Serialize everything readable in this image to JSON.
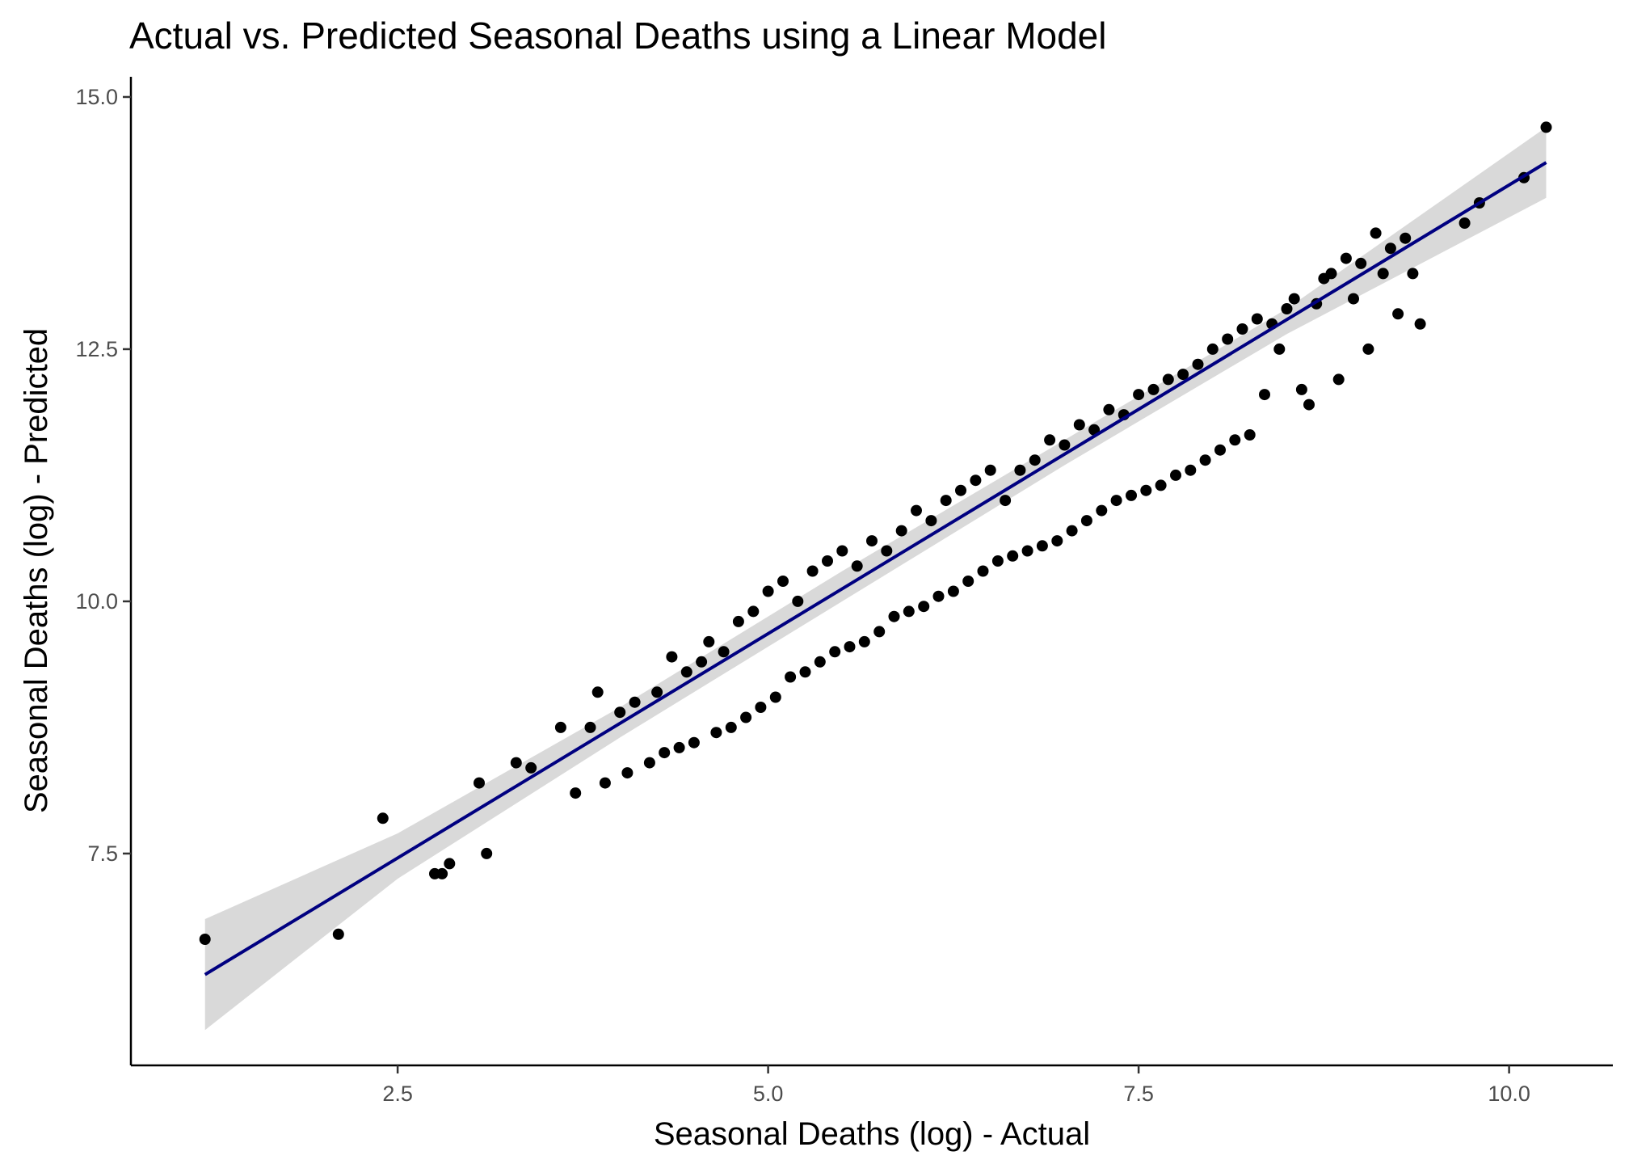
{
  "chart_data": {
    "type": "scatter",
    "title": "Actual vs. Predicted Seasonal Deaths using a Linear Model",
    "xlabel": "Seasonal Deaths (log) - Actual",
    "ylabel": "Seasonal Deaths (log) - Predicted",
    "xlim": [
      0.7,
      10.7
    ],
    "ylim": [
      5.4,
      15.2
    ],
    "x_ticks": [
      2.5,
      5.0,
      7.5,
      10.0
    ],
    "x_tick_labels": [
      "2.5",
      "5.0",
      "7.5",
      "10.0"
    ],
    "y_ticks": [
      7.5,
      10.0,
      12.5,
      15.0
    ],
    "y_tick_labels": [
      "7.5",
      "10.0",
      "12.5",
      "15.0"
    ],
    "grid": false,
    "legend": "none",
    "colors": {
      "points": "#000000",
      "fit_line": "#000080",
      "confidence_band": "#bfbfbf"
    },
    "fit_line": {
      "method": "linear",
      "x": [
        1.2,
        10.25
      ],
      "y": [
        6.3,
        14.35
      ],
      "band": {
        "x": [
          1.2,
          2.5,
          4.0,
          5.5,
          7.0,
          8.5,
          10.25
        ],
        "lower": [
          5.75,
          7.25,
          8.65,
          10.0,
          11.35,
          12.65,
          14.0
        ],
        "upper": [
          6.85,
          7.7,
          8.95,
          10.3,
          11.6,
          12.9,
          14.7
        ]
      }
    },
    "series": [
      {
        "points": [
          [
            1.2,
            6.65
          ],
          [
            2.1,
            6.7
          ],
          [
            2.4,
            7.85
          ],
          [
            2.75,
            7.3
          ],
          [
            2.8,
            7.3
          ],
          [
            2.85,
            7.4
          ],
          [
            3.05,
            8.2
          ],
          [
            3.1,
            7.5
          ],
          [
            3.3,
            8.4
          ],
          [
            3.4,
            8.35
          ],
          [
            3.6,
            8.75
          ],
          [
            3.7,
            8.1
          ],
          [
            3.8,
            8.75
          ],
          [
            3.85,
            9.1
          ],
          [
            3.9,
            8.2
          ],
          [
            4.0,
            8.9
          ],
          [
            4.05,
            8.3
          ],
          [
            4.1,
            9.0
          ],
          [
            4.2,
            8.4
          ],
          [
            4.25,
            9.1
          ],
          [
            4.3,
            8.5
          ],
          [
            4.35,
            9.45
          ],
          [
            4.4,
            8.55
          ],
          [
            4.45,
            9.3
          ],
          [
            4.5,
            8.6
          ],
          [
            4.55,
            9.4
          ],
          [
            4.6,
            9.6
          ],
          [
            4.65,
            8.7
          ],
          [
            4.7,
            9.5
          ],
          [
            4.75,
            8.75
          ],
          [
            4.8,
            9.8
          ],
          [
            4.85,
            8.85
          ],
          [
            4.9,
            9.9
          ],
          [
            4.95,
            8.95
          ],
          [
            5.0,
            10.1
          ],
          [
            5.05,
            9.05
          ],
          [
            5.1,
            10.2
          ],
          [
            5.15,
            9.25
          ],
          [
            5.2,
            10.0
          ],
          [
            5.25,
            9.3
          ],
          [
            5.3,
            10.3
          ],
          [
            5.35,
            9.4
          ],
          [
            5.4,
            10.4
          ],
          [
            5.45,
            9.5
          ],
          [
            5.5,
            10.5
          ],
          [
            5.55,
            9.55
          ],
          [
            5.6,
            10.35
          ],
          [
            5.65,
            9.6
          ],
          [
            5.7,
            10.6
          ],
          [
            5.75,
            9.7
          ],
          [
            5.8,
            10.5
          ],
          [
            5.85,
            9.85
          ],
          [
            5.9,
            10.7
          ],
          [
            5.95,
            9.9
          ],
          [
            6.0,
            10.9
          ],
          [
            6.05,
            9.95
          ],
          [
            6.1,
            10.8
          ],
          [
            6.15,
            10.05
          ],
          [
            6.2,
            11.0
          ],
          [
            6.25,
            10.1
          ],
          [
            6.3,
            11.1
          ],
          [
            6.35,
            10.2
          ],
          [
            6.4,
            11.2
          ],
          [
            6.45,
            10.3
          ],
          [
            6.5,
            11.3
          ],
          [
            6.55,
            10.4
          ],
          [
            6.6,
            11.0
          ],
          [
            6.65,
            10.45
          ],
          [
            6.7,
            11.3
          ],
          [
            6.75,
            10.5
          ],
          [
            6.8,
            11.4
          ],
          [
            6.85,
            10.55
          ],
          [
            6.9,
            11.6
          ],
          [
            6.95,
            10.6
          ],
          [
            7.0,
            11.55
          ],
          [
            7.05,
            10.7
          ],
          [
            7.1,
            11.75
          ],
          [
            7.15,
            10.8
          ],
          [
            7.2,
            11.7
          ],
          [
            7.25,
            10.9
          ],
          [
            7.3,
            11.9
          ],
          [
            7.35,
            11.0
          ],
          [
            7.4,
            11.85
          ],
          [
            7.45,
            11.05
          ],
          [
            7.5,
            12.05
          ],
          [
            7.55,
            11.1
          ],
          [
            7.6,
            12.1
          ],
          [
            7.65,
            11.15
          ],
          [
            7.7,
            12.2
          ],
          [
            7.75,
            11.25
          ],
          [
            7.8,
            12.25
          ],
          [
            7.85,
            11.3
          ],
          [
            7.9,
            12.35
          ],
          [
            7.95,
            11.4
          ],
          [
            8.0,
            12.5
          ],
          [
            8.05,
            11.5
          ],
          [
            8.1,
            12.6
          ],
          [
            8.15,
            11.6
          ],
          [
            8.2,
            12.7
          ],
          [
            8.25,
            11.65
          ],
          [
            8.3,
            12.8
          ],
          [
            8.35,
            12.05
          ],
          [
            8.4,
            12.75
          ],
          [
            8.45,
            12.5
          ],
          [
            8.5,
            12.9
          ],
          [
            8.55,
            13.0
          ],
          [
            8.6,
            12.1
          ],
          [
            8.65,
            11.95
          ],
          [
            8.7,
            12.95
          ],
          [
            8.75,
            13.2
          ],
          [
            8.8,
            13.25
          ],
          [
            8.85,
            12.2
          ],
          [
            8.9,
            13.4
          ],
          [
            8.95,
            13.0
          ],
          [
            9.0,
            13.35
          ],
          [
            9.05,
            12.5
          ],
          [
            9.1,
            13.65
          ],
          [
            9.15,
            13.25
          ],
          [
            9.2,
            13.5
          ],
          [
            9.25,
            12.85
          ],
          [
            9.3,
            13.6
          ],
          [
            9.35,
            13.25
          ],
          [
            9.4,
            12.75
          ],
          [
            9.7,
            13.75
          ],
          [
            9.8,
            13.95
          ],
          [
            10.1,
            14.2
          ],
          [
            10.25,
            14.7
          ]
        ]
      }
    ]
  }
}
